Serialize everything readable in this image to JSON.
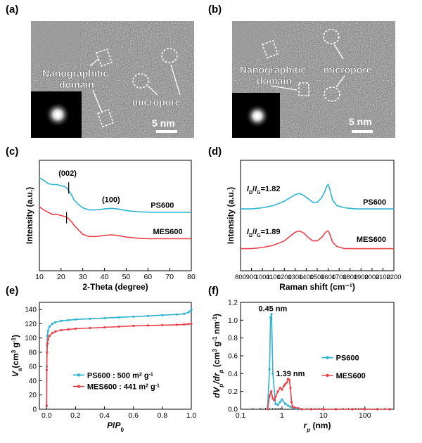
{
  "panels": {
    "a": {
      "label": "(a)",
      "annotations": [
        "Nanographitic",
        "domain",
        "micropore"
      ],
      "scale_bar": "5 nm"
    },
    "b": {
      "label": "(b)",
      "annotations": [
        "Nanographitic",
        "domain",
        "micropore"
      ],
      "scale_bar": "5 nm"
    },
    "c": {
      "label": "(c)"
    },
    "d": {
      "label": "(d)"
    },
    "e": {
      "label": "(e)"
    },
    "f": {
      "label": "(f)"
    }
  },
  "colors": {
    "PS600": "#2eb3d0",
    "MES600": "#e8424a"
  },
  "chart_data": [
    {
      "panel": "c",
      "type": "line",
      "xlabel": "2-Theta (degree)",
      "ylabel": "Intensity (a.u.)",
      "xlim": [
        10,
        80
      ],
      "xticks": [
        10,
        20,
        30,
        40,
        50,
        60,
        70,
        80
      ],
      "ylim": [
        0,
        1
      ],
      "yticks_shown": false,
      "annotations": [
        {
          "text": "(002)",
          "x": 23,
          "y": 0.86
        },
        {
          "text": "(100)",
          "x": 43,
          "y": 0.62
        }
      ],
      "peak_markers": [
        {
          "x": 23.5,
          "y": 0.75
        },
        {
          "x": 22.5,
          "y": 0.48
        }
      ],
      "series": [
        {
          "name": "PS600",
          "x": [
            10,
            12,
            14,
            16,
            18,
            20,
            22,
            23,
            24,
            25,
            26,
            28,
            30,
            33,
            36,
            40,
            43,
            46,
            50,
            55,
            60,
            65,
            70,
            75,
            80
          ],
          "y": [
            0.84,
            0.82,
            0.79,
            0.78,
            0.78,
            0.77,
            0.76,
            0.74,
            0.71,
            0.68,
            0.64,
            0.6,
            0.57,
            0.55,
            0.55,
            0.56,
            0.565,
            0.56,
            0.545,
            0.535,
            0.53,
            0.53,
            0.53,
            0.53,
            0.53
          ]
        },
        {
          "name": "PS600 label",
          "x": [],
          "y": []
        },
        {
          "name": "MES600",
          "x": [
            10,
            12,
            14,
            16,
            18,
            20,
            22,
            23,
            24,
            25,
            26,
            28,
            30,
            33,
            36,
            40,
            43,
            46,
            50,
            55,
            60,
            65,
            70,
            75,
            80
          ],
          "y": [
            0.58,
            0.55,
            0.53,
            0.51,
            0.51,
            0.5,
            0.49,
            0.48,
            0.46,
            0.44,
            0.41,
            0.37,
            0.33,
            0.31,
            0.31,
            0.32,
            0.325,
            0.32,
            0.305,
            0.295,
            0.29,
            0.29,
            0.29,
            0.29,
            0.29
          ]
        }
      ],
      "series_labels": [
        "PS600",
        "MES600"
      ]
    },
    {
      "panel": "d",
      "type": "line",
      "xlabel": "Raman shift (cm⁻¹)",
      "ylabel": "Intensity (a.u.)",
      "xlim": [
        800,
        2200
      ],
      "xticks": [
        800,
        900,
        1000,
        1100,
        1200,
        1300,
        1400,
        1500,
        1600,
        1700,
        1800,
        1900,
        2000,
        2100,
        2200
      ],
      "ylim": [
        0,
        1
      ],
      "yticks_shown": false,
      "ratio_labels": [
        {
          "text": "ID/IG=1.82",
          "x": 1010,
          "y": 0.72
        },
        {
          "text": "ID/IG=1.89",
          "x": 1010,
          "y": 0.33
        }
      ],
      "series": [
        {
          "name": "PS600",
          "x": [
            800,
            900,
            1000,
            1100,
            1200,
            1250,
            1300,
            1340,
            1380,
            1420,
            1460,
            1500,
            1540,
            1570,
            1590,
            1600,
            1615,
            1640,
            1680,
            1750,
            1850,
            2000,
            2100,
            2200
          ],
          "y": [
            0.56,
            0.56,
            0.57,
            0.59,
            0.63,
            0.66,
            0.69,
            0.7,
            0.68,
            0.65,
            0.62,
            0.62,
            0.66,
            0.72,
            0.77,
            0.78,
            0.74,
            0.64,
            0.59,
            0.57,
            0.56,
            0.56,
            0.56,
            0.56
          ]
        },
        {
          "name": "MES600",
          "x": [
            800,
            900,
            1000,
            1100,
            1200,
            1250,
            1300,
            1340,
            1380,
            1420,
            1460,
            1500,
            1540,
            1570,
            1590,
            1600,
            1615,
            1640,
            1680,
            1750,
            1850,
            2000,
            2100,
            2200
          ],
          "y": [
            0.2,
            0.2,
            0.21,
            0.23,
            0.27,
            0.31,
            0.35,
            0.36,
            0.34,
            0.3,
            0.27,
            0.27,
            0.3,
            0.34,
            0.36,
            0.36,
            0.33,
            0.26,
            0.22,
            0.2,
            0.2,
            0.2,
            0.2,
            0.2
          ]
        }
      ],
      "series_labels": [
        "PS600",
        "MES600"
      ]
    },
    {
      "panel": "e",
      "type": "line",
      "xlabel": "P/P0",
      "ylabel": "Va (cm3 g-1)",
      "xlim": [
        -0.05,
        1.0
      ],
      "xticks": [
        0.0,
        0.2,
        0.4,
        0.6,
        0.8,
        1.0
      ],
      "ylim": [
        0,
        150
      ],
      "yticks": [
        0,
        20,
        40,
        60,
        80,
        100,
        120,
        140
      ],
      "legend": "center",
      "legend_entries": [
        "PS600 : 500 m² g⁻¹",
        "MES600 : 441 m² g⁻¹"
      ],
      "series": [
        {
          "name": "PS600",
          "x": [
            0.0,
            0.001,
            0.003,
            0.006,
            0.01,
            0.02,
            0.04,
            0.06,
            0.1,
            0.15,
            0.2,
            0.3,
            0.4,
            0.5,
            0.6,
            0.7,
            0.8,
            0.9,
            0.95,
            0.98,
            1.0
          ],
          "y": [
            5,
            60,
            90,
            103,
            110,
            116,
            120,
            122,
            124,
            125,
            126,
            127,
            128,
            129,
            130,
            131,
            132,
            133,
            134,
            136,
            140
          ]
        },
        {
          "name": "MES600",
          "x": [
            0.0,
            0.001,
            0.003,
            0.006,
            0.01,
            0.02,
            0.04,
            0.06,
            0.1,
            0.15,
            0.2,
            0.3,
            0.4,
            0.5,
            0.6,
            0.7,
            0.8,
            0.9,
            0.95,
            0.98,
            1.0
          ],
          "y": [
            5,
            55,
            80,
            92,
            98,
            103,
            107,
            109,
            111,
            112,
            113,
            114,
            115,
            116,
            117,
            117.5,
            118,
            118.5,
            119,
            119.5,
            120
          ]
        }
      ]
    },
    {
      "panel": "f",
      "type": "line",
      "xlabel": "rp (nm)",
      "ylabel": "dVp/drp (cm3 g-1 nm-1)",
      "xscale": "log",
      "xlim": [
        0.1,
        500
      ],
      "xticks": [
        0.1,
        1,
        10,
        100
      ],
      "ylim": [
        0,
        1.2
      ],
      "yticks": [
        0.0,
        0.2,
        0.4,
        0.6,
        0.8,
        1.0,
        1.2
      ],
      "legend": "center-right",
      "annotations": [
        {
          "text": "0.45 nm",
          "x": 0.6,
          "y": 1.1
        },
        {
          "text": "1.39 nm",
          "x": 1.6,
          "y": 0.37
        }
      ],
      "series": [
        {
          "name": "PS600",
          "x": [
            0.45,
            0.5,
            0.53,
            0.56,
            0.6,
            0.7,
            0.8,
            0.9,
            1.0,
            1.2,
            1.4,
            1.6,
            1.8,
            2.0,
            2.5,
            3,
            5,
            10,
            20,
            50,
            100,
            200,
            400
          ],
          "y": [
            0.03,
            0.45,
            1.03,
            1.07,
            0.4,
            0.06,
            0.05,
            0.08,
            0.11,
            0.06,
            0.04,
            0.03,
            0.02,
            0.01,
            0.0,
            0.0,
            0.0,
            0.0,
            0.0,
            0.0,
            0.0,
            0.0,
            0.0
          ]
        },
        {
          "name": "MES600",
          "x": [
            0.45,
            0.5,
            0.55,
            0.6,
            0.65,
            0.7,
            0.8,
            0.9,
            1.0,
            1.1,
            1.2,
            1.3,
            1.39,
            1.5,
            1.6,
            1.7,
            1.8,
            2.0,
            2.5,
            3,
            5,
            10,
            20,
            50,
            100,
            200,
            400
          ],
          "y": [
            0.0,
            0.15,
            0.2,
            0.12,
            0.1,
            0.14,
            0.2,
            0.24,
            0.22,
            0.26,
            0.28,
            0.3,
            0.34,
            0.33,
            0.24,
            0.08,
            0.03,
            0.02,
            0.01,
            0.0,
            0.0,
            0.0,
            0.0,
            0.0,
            0.0,
            0.0,
            0.0
          ]
        }
      ]
    }
  ]
}
